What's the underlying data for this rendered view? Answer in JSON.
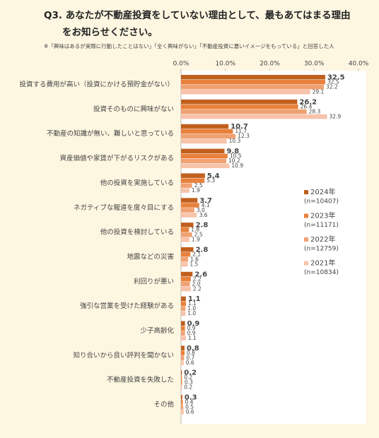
{
  "chart_data": {
    "type": "bar",
    "orientation": "horizontal",
    "title": "Q3. あなたが不動産投資をしていない理由として、最もあてはまる理由をお知らせください。",
    "note": "※「興味はあるが実際に行動したことはない」「全く興味がない」「不動産投資に悪いイメージをもっている」と回答した人",
    "categories": [
      "投資する費用が高い（投資にかける預貯金がない）",
      "投資そのものに興味がない",
      "不動産の知識が無い、難しいと思っている",
      "資産価値や家賃が下がるリスクがある",
      "他の投資を実施している",
      "ネガティブな報道を度々目にする",
      "他の投資を検討している",
      "地震などの災害",
      "利回りが悪い",
      "強引な営業を受けた経験がある",
      "少子高齢化",
      "知り合いから良い評判を聞かない",
      "不動産投資を失敗した",
      "その他"
    ],
    "series": [
      {
        "name": "2024年",
        "n": "(n=10407)",
        "color": "#c0601e",
        "values": [
          32.5,
          26.2,
          10.7,
          9.8,
          5.4,
          3.7,
          2.8,
          2.8,
          2.6,
          1.1,
          0.9,
          0.8,
          0.2,
          0.3
        ],
        "value_labels": [
          "32.5",
          "26.2",
          "10.7",
          "9.8",
          "5.4",
          "3.7",
          "2.8",
          "2.8",
          "2.6",
          "1.1",
          "0.9",
          "0.8",
          "0.2",
          "0.3"
        ]
      },
      {
        "name": "2023年",
        "n": "(n=11171)",
        "color": "#e8813c",
        "values": [
          32.5,
          26.4,
          11.7,
          10.5,
          5.3,
          4.1,
          1.8,
          2.1,
          2.2,
          1.1,
          0.9,
          0.8,
          0.2,
          0.4
        ],
        "value_labels": [
          "32.5",
          "26.4",
          "11.7",
          "10.5",
          "5.3",
          "4.1",
          "1.8",
          "2.1",
          "2.2",
          "1.1",
          "0.9",
          "0.8",
          "0.2",
          "0.4"
        ]
      },
      {
        "name": "2022年",
        "n": "(n=12759)",
        "color": "#f0a172",
        "values": [
          32.2,
          28.3,
          12.3,
          10.2,
          2.5,
          3.0,
          2.5,
          1.6,
          2.0,
          1.0,
          0.9,
          0.7,
          0.3,
          0.5
        ],
        "value_labels": [
          "32.2",
          "28.3",
          "12.3",
          "10.2",
          "2.5",
          "3.0",
          "2.5",
          "1.6",
          "2.0",
          "1.0",
          "0.9",
          "0.7",
          "0.3",
          "0.5"
        ]
      },
      {
        "name": "2021年",
        "n": "(n=10834)",
        "color": "#f7c3aa",
        "values": [
          29.1,
          32.9,
          10.3,
          10.9,
          1.9,
          3.6,
          1.9,
          1.5,
          2.2,
          1.0,
          1.1,
          0.6,
          0.2,
          0.6
        ],
        "value_labels": [
          "29.1",
          "32.9",
          "10.3",
          "10.9",
          "1.9",
          "3.6",
          "1.9",
          "1.5",
          "2.2",
          "1.0",
          "1.1",
          "0.6",
          "0.2",
          "0.6"
        ]
      }
    ],
    "xlim": [
      0,
      40
    ],
    "xticks": [
      {
        "value": 0,
        "label": "0.0%"
      },
      {
        "value": 10,
        "label": "10.0%"
      },
      {
        "value": 20,
        "label": "20.0%"
      },
      {
        "value": 30,
        "label": "30.0%"
      },
      {
        "value": 40,
        "label": "40.0%"
      }
    ],
    "grid": false,
    "legend": "right"
  }
}
